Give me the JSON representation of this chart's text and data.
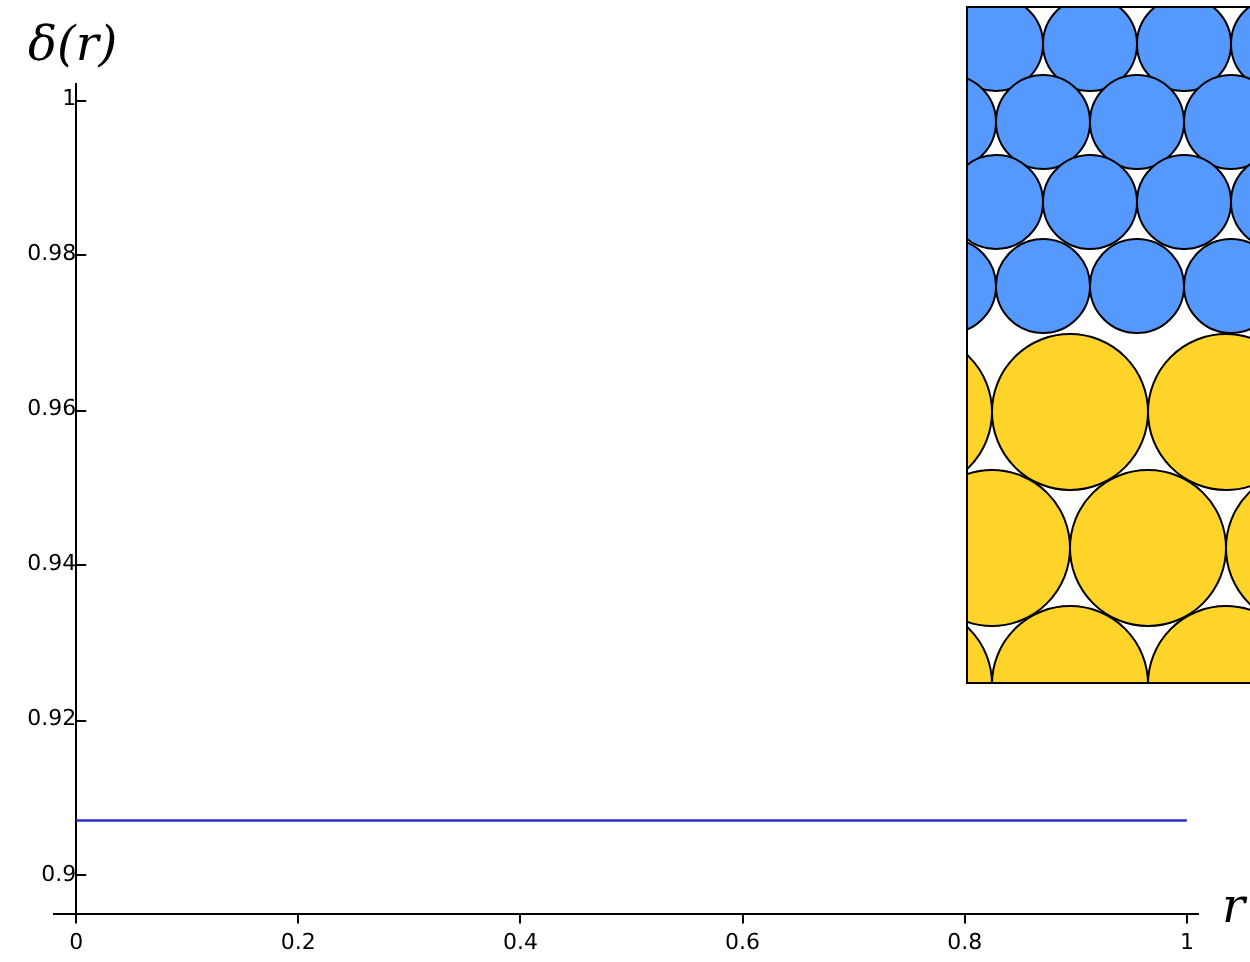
{
  "chart_data": {
    "type": "line",
    "xlabel": "r",
    "ylabel": "δ(r)",
    "x": [
      0,
      1
    ],
    "series": [
      {
        "color": "#3030c8",
        "values": [
          0.907,
          0.907
        ]
      }
    ],
    "xlim": [
      -0.02,
      1.01
    ],
    "ylim": [
      0.895,
      1.002
    ],
    "xticks": [
      0,
      0.2,
      0.4,
      0.6,
      0.8,
      1
    ],
    "yticks": [
      0.9,
      0.92,
      0.94,
      0.96,
      0.98,
      1
    ],
    "grid": false,
    "legend": false,
    "marker": "none",
    "line_style": "solid"
  }
}
